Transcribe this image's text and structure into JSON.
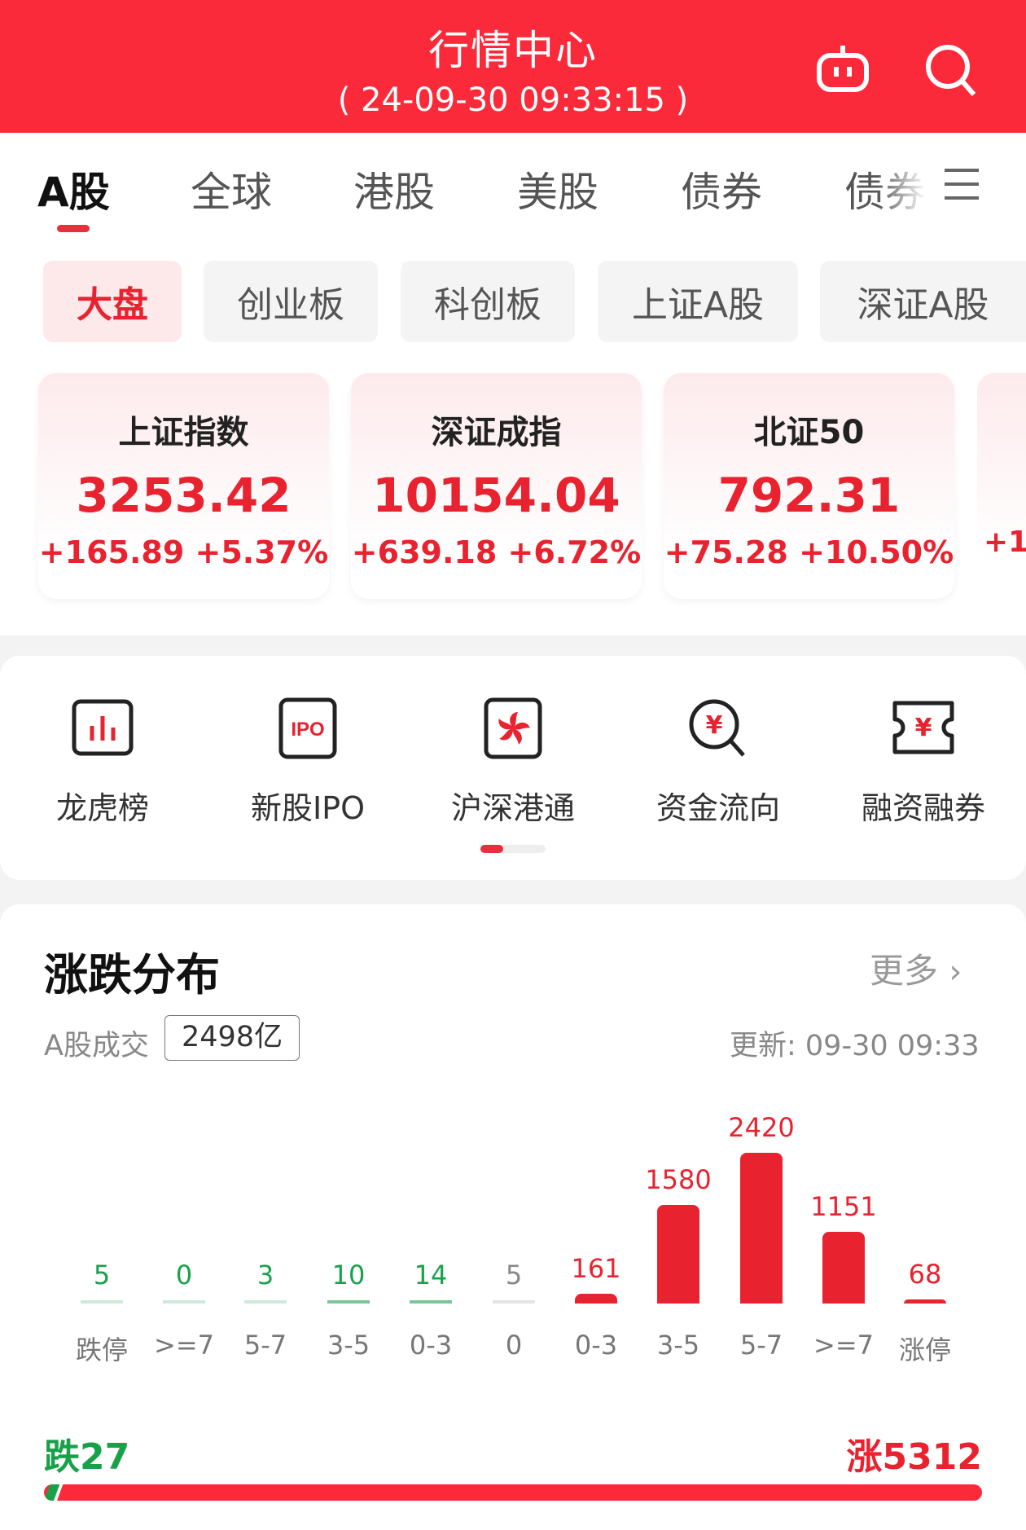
{
  "header": {
    "title": "行情中心",
    "timestamp": "( 24-09-30  09:33:15 )",
    "icons": [
      "robot-icon",
      "search-icon"
    ]
  },
  "tabs": [
    "A股",
    "全球",
    "港股",
    "美股",
    "债券",
    "债券"
  ],
  "active_tab": 0,
  "chips": [
    "大盘",
    "创业板",
    "科创板",
    "上证A股",
    "深证A股"
  ],
  "indices": [
    {
      "name": "上证指数",
      "value": "3253.42",
      "change": "+165.89 +5.37%"
    },
    {
      "name": "深证成指",
      "value": "10154.04",
      "change": "+639.18 +6.72%"
    },
    {
      "name": "北证50",
      "value": "792.31",
      "change": "+75.28 +10.50%"
    },
    {
      "name": "",
      "value": "",
      "change": "+1"
    }
  ],
  "shortcuts": [
    {
      "label": "龙虎榜",
      "icon": "bar-chart-icon"
    },
    {
      "label": "新股IPO",
      "icon": "ipo-icon"
    },
    {
      "label": "沪深港通",
      "icon": "bauhinia-icon"
    },
    {
      "label": "资金流向",
      "icon": "yuan-search-icon"
    },
    {
      "label": "融资融券",
      "icon": "yuan-ticket-icon"
    }
  ],
  "distribution": {
    "title": "涨跌分布",
    "more": "更多",
    "volume_label": "A股成交",
    "volume": "2498亿",
    "updated": "更新:  09-30 09:33",
    "down_total": "跌27",
    "up_total": "涨5312",
    "down_fraction": 0.005
  },
  "colors": {
    "brand": "#fb2a3a",
    "up": "#e8222f",
    "down": "#19a14a",
    "flat": "#888888"
  },
  "chart_data": {
    "type": "bar",
    "categories": [
      "跌停",
      ">=7",
      "5-7",
      "3-5",
      "0-3",
      "0",
      "0-3",
      "3-5",
      "5-7",
      ">=7",
      "涨停"
    ],
    "values": [
      5,
      0,
      3,
      10,
      14,
      5,
      161,
      1580,
      2420,
      1151,
      68
    ],
    "value_labels": [
      "5",
      "0",
      "3",
      "10",
      "14",
      "5",
      "161",
      "1580",
      "2420",
      "1151",
      "68"
    ],
    "direction": [
      "down",
      "down",
      "down",
      "down",
      "down",
      "flat",
      "up",
      "up",
      "up",
      "up",
      "up"
    ]
  }
}
